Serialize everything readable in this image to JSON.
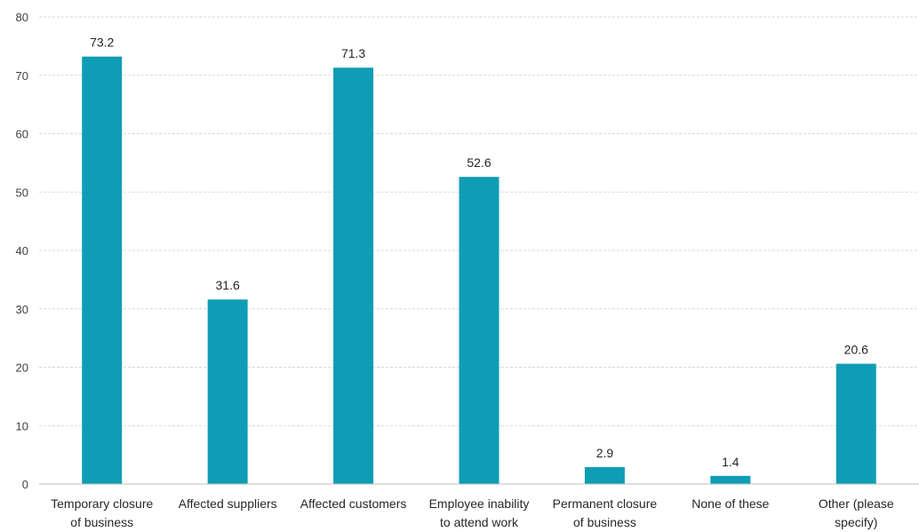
{
  "chart_data": {
    "type": "bar",
    "categories": [
      [
        "Temporary closure",
        "of business"
      ],
      [
        "Affected suppliers"
      ],
      [
        "Affected customers"
      ],
      [
        "Employee inability",
        "to attend work"
      ],
      [
        "Permanent closure",
        "of business"
      ],
      [
        "None of these"
      ],
      [
        "Other (please",
        "specify)"
      ]
    ],
    "values": [
      73.2,
      31.6,
      71.3,
      52.6,
      2.9,
      1.4,
      20.6
    ],
    "value_labels": [
      "73.2",
      "31.6",
      "71.3",
      "52.6",
      "2.9",
      "1.4",
      "20.6"
    ],
    "ylim": [
      0,
      80
    ],
    "yticks": [
      "0",
      "10",
      "20",
      "30",
      "40",
      "50",
      "60",
      "70",
      "80"
    ],
    "grid": true,
    "bar_color": "#0e9db5"
  }
}
